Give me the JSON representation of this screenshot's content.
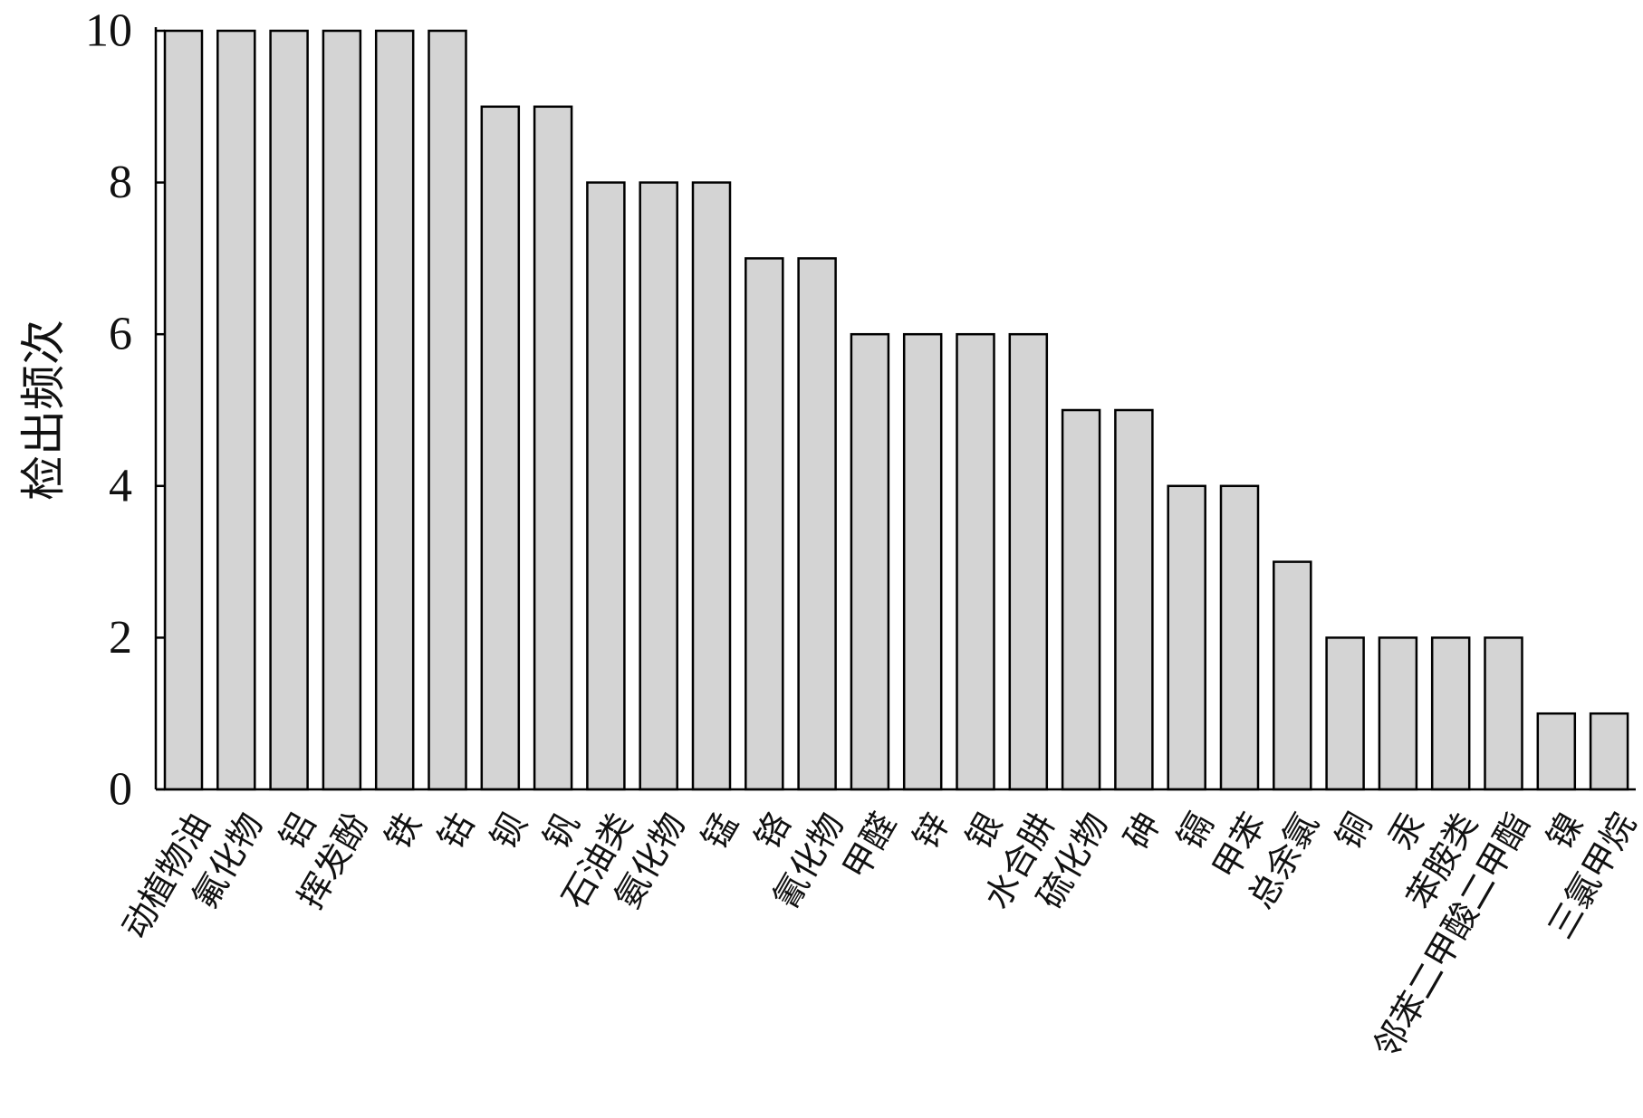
{
  "chart_data": {
    "type": "bar",
    "title": "",
    "xlabel": "",
    "ylabel": "检出频次",
    "ylim": [
      0,
      10
    ],
    "yticks": [
      0,
      2,
      4,
      6,
      8,
      10
    ],
    "grid": false,
    "bar_color": "#d4d4d4",
    "categories": [
      "动植物油",
      "氟化物",
      "铝",
      "挥发酚",
      "铁",
      "钴",
      "钡",
      "钒",
      "石油类",
      "氨化物",
      "锰",
      "铬",
      "氰化物",
      "甲醛",
      "锌",
      "银",
      "水合肼",
      "硫化物",
      "砷",
      "镉",
      "甲苯",
      "总余氯",
      "铜",
      "汞",
      "苯胺类",
      "邻苯二甲酸二甲酯",
      "镍",
      "三氯甲烷"
    ],
    "values": [
      10,
      10,
      10,
      10,
      10,
      10,
      9,
      9,
      8,
      8,
      8,
      7,
      7,
      6,
      6,
      6,
      6,
      5,
      5,
      4,
      4,
      3,
      2,
      2,
      2,
      2,
      1,
      1
    ]
  }
}
